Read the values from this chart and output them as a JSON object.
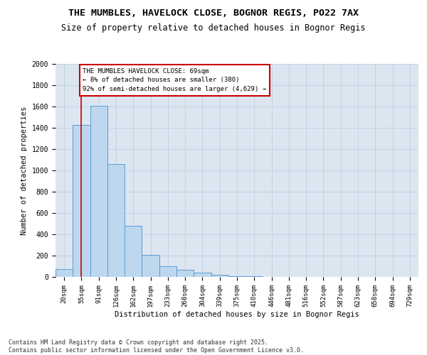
{
  "title_line1": "THE MUMBLES, HAVELOCK CLOSE, BOGNOR REGIS, PO22 7AX",
  "title_line2": "Size of property relative to detached houses in Bognor Regis",
  "xlabel": "Distribution of detached houses by size in Bognor Regis",
  "ylabel": "Number of detached properties",
  "categories": [
    "20sqm",
    "55sqm",
    "91sqm",
    "126sqm",
    "162sqm",
    "197sqm",
    "233sqm",
    "268sqm",
    "304sqm",
    "339sqm",
    "375sqm",
    "410sqm",
    "446sqm",
    "481sqm",
    "516sqm",
    "552sqm",
    "587sqm",
    "623sqm",
    "658sqm",
    "694sqm",
    "729sqm"
  ],
  "values": [
    75,
    1430,
    1610,
    1060,
    480,
    205,
    100,
    65,
    40,
    20,
    10,
    5,
    2,
    1,
    0,
    0,
    0,
    0,
    0,
    0,
    0
  ],
  "bar_color": "#bdd7ee",
  "bar_edge_color": "#5b9bd5",
  "grid_color": "#c0cfe0",
  "bg_color": "#dce6f1",
  "ref_line_color": "#cc0000",
  "ref_line_x": 1.0,
  "annotation_text": "THE MUMBLES HAVELOCK CLOSE: 69sqm\n← 8% of detached houses are smaller (380)\n92% of semi-detached houses are larger (4,629) →",
  "annotation_box_facecolor": "#ffffff",
  "annotation_box_edgecolor": "#cc0000",
  "ylim_max": 2000,
  "yticks": [
    0,
    200,
    400,
    600,
    800,
    1000,
    1200,
    1400,
    1600,
    1800,
    2000
  ],
  "footer_line1": "Contains HM Land Registry data © Crown copyright and database right 2025.",
  "footer_line2": "Contains public sector information licensed under the Open Government Licence v3.0."
}
